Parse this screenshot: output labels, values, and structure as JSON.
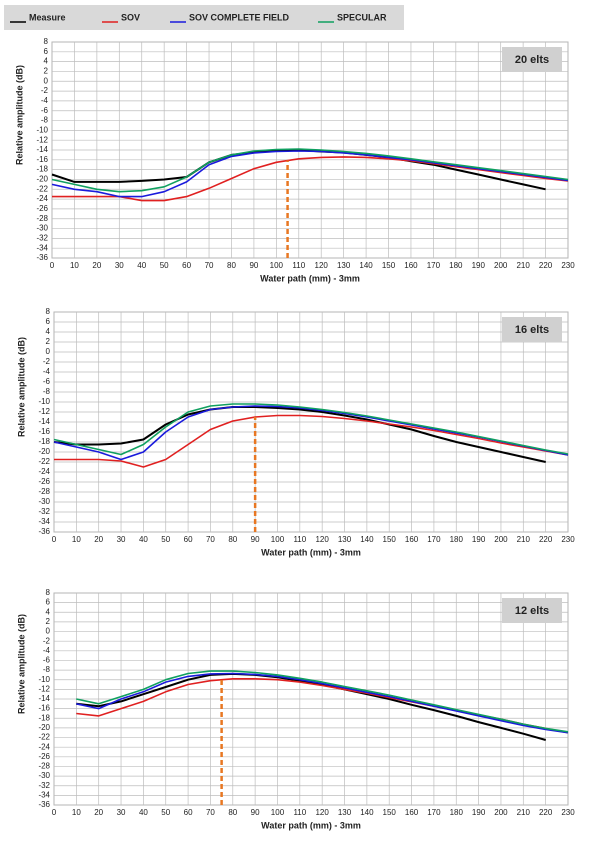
{
  "chart_data": [
    {
      "type": "line",
      "annotation": "20 elts",
      "xlabel": "Water path (mm) - 3mm",
      "ylabel": "Relative amplitude (dB)",
      "xlim": [
        0,
        230
      ],
      "xticks": [
        0,
        10,
        20,
        30,
        40,
        50,
        60,
        70,
        80,
        90,
        100,
        110,
        120,
        130,
        140,
        150,
        160,
        170,
        180,
        190,
        200,
        210,
        220,
        230
      ],
      "ylim": [
        -36,
        8
      ],
      "yticks": [
        8,
        6,
        4,
        2,
        0,
        -2,
        -4,
        -6,
        -8,
        -10,
        -12,
        -14,
        -16,
        -18,
        -20,
        -22,
        -24,
        -26,
        -28,
        -30,
        -32,
        -34,
        -36
      ],
      "grid": true,
      "marker_x": 105,
      "marker_color": "#e87722",
      "x": [
        0,
        10,
        20,
        30,
        40,
        50,
        60,
        70,
        80,
        90,
        100,
        110,
        120,
        130,
        140,
        150,
        160,
        170,
        180,
        190,
        200,
        210,
        220,
        230
      ],
      "series": [
        {
          "name": "Measure",
          "color": "#000000",
          "values": [
            -19,
            -20.5,
            -20.5,
            -20.5,
            -20.3,
            -20,
            -19.5,
            -16.5,
            -15,
            -14.5,
            -14,
            -14,
            -14.3,
            -14.5,
            -15,
            -15.5,
            -16.3,
            -17,
            -18,
            -19,
            -20,
            -21,
            -22,
            null
          ]
        },
        {
          "name": "SOV",
          "color": "#e02020",
          "values": [
            -23.5,
            -23.5,
            -23.5,
            -23.5,
            -24.3,
            -24.3,
            -23.5,
            -21.8,
            -19.8,
            -17.8,
            -16.5,
            -15.8,
            -15.5,
            -15.4,
            -15.5,
            -15.8,
            -16.2,
            -16.8,
            -17.4,
            -18,
            -18.6,
            -19.2,
            -19.8,
            -20.3
          ]
        },
        {
          "name": "SOV COMPLETE FIELD",
          "color": "#1a1adc",
          "values": [
            -21,
            -22,
            -22.5,
            -23.5,
            -23.5,
            -22.5,
            -20.5,
            -17,
            -15.3,
            -14.6,
            -14.3,
            -14.2,
            -14.3,
            -14.6,
            -15,
            -15.5,
            -16,
            -16.6,
            -17.2,
            -17.8,
            -18.4,
            -19,
            -19.6,
            -20.2
          ]
        },
        {
          "name": "SPECULAR",
          "color": "#10a060",
          "values": [
            -20,
            -21,
            -22,
            -22.5,
            -22.3,
            -21.5,
            -19.5,
            -16.5,
            -15,
            -14.2,
            -13.9,
            -13.8,
            -14,
            -14.3,
            -14.7,
            -15.2,
            -15.8,
            -16.4,
            -17,
            -17.6,
            -18.2,
            -18.8,
            -19.4,
            -20
          ]
        }
      ]
    },
    {
      "type": "line",
      "annotation": "16 elts",
      "xlabel": "Water path (mm) - 3mm",
      "ylabel": "Relative amplitude (dB)",
      "xlim": [
        0,
        230
      ],
      "xticks": [
        0,
        10,
        20,
        30,
        40,
        50,
        60,
        70,
        80,
        90,
        100,
        110,
        120,
        130,
        140,
        150,
        160,
        170,
        180,
        190,
        200,
        210,
        220,
        230
      ],
      "ylim": [
        -36,
        8
      ],
      "yticks": [
        8,
        6,
        4,
        2,
        0,
        -2,
        -4,
        -6,
        -8,
        -10,
        -12,
        -14,
        -16,
        -18,
        -20,
        -22,
        -24,
        -26,
        -28,
        -30,
        -32,
        -34,
        -36
      ],
      "grid": true,
      "marker_x": 90,
      "marker_color": "#e87722",
      "x": [
        0,
        10,
        20,
        30,
        40,
        50,
        60,
        70,
        80,
        90,
        100,
        110,
        120,
        130,
        140,
        150,
        160,
        170,
        180,
        190,
        200,
        210,
        220,
        230
      ],
      "series": [
        {
          "name": "Measure",
          "color": "#000000",
          "values": [
            -18,
            -18.5,
            -18.5,
            -18.3,
            -17.5,
            -14.5,
            -12.5,
            -11.5,
            -11,
            -11,
            -11.2,
            -11.5,
            -12,
            -12.7,
            -13.5,
            -14.5,
            -15.5,
            -16.8,
            -18,
            -19,
            -20,
            -21,
            -22,
            null
          ]
        },
        {
          "name": "SOV",
          "color": "#e02020",
          "values": [
            -21.5,
            -21.5,
            -21.5,
            -21.8,
            -23,
            -21.5,
            -18.5,
            -15.5,
            -13.8,
            -13,
            -12.7,
            -12.7,
            -12.9,
            -13.3,
            -13.8,
            -14.4,
            -15,
            -15.7,
            -16.5,
            -17.3,
            -18.2,
            -19,
            -19.8,
            -20.6
          ]
        },
        {
          "name": "SOV COMPLETE FIELD",
          "color": "#1a1adc",
          "values": [
            -18,
            -19,
            -20,
            -21.5,
            -20,
            -16,
            -13,
            -11.5,
            -11,
            -10.8,
            -10.9,
            -11.2,
            -11.7,
            -12.3,
            -13,
            -13.8,
            -14.6,
            -15.4,
            -16.2,
            -17,
            -17.9,
            -18.8,
            -19.7,
            -20.6
          ]
        },
        {
          "name": "SPECULAR",
          "color": "#10a060",
          "values": [
            -17.5,
            -18.5,
            -19.5,
            -20.5,
            -18.5,
            -15,
            -12,
            -10.8,
            -10.4,
            -10.4,
            -10.6,
            -11,
            -11.5,
            -12.1,
            -12.8,
            -13.6,
            -14.4,
            -15.2,
            -16,
            -16.9,
            -17.8,
            -18.7,
            -19.6,
            -20.4
          ]
        }
      ]
    },
    {
      "type": "line",
      "annotation": "12 elts",
      "xlabel": "Water path (mm) - 3mm",
      "ylabel": "Relative amplitude (dB)",
      "xlim": [
        0,
        230
      ],
      "xticks": [
        0,
        10,
        20,
        30,
        40,
        50,
        60,
        70,
        80,
        90,
        100,
        110,
        120,
        130,
        140,
        150,
        160,
        170,
        180,
        190,
        200,
        210,
        220,
        230
      ],
      "ylim": [
        -36,
        8
      ],
      "yticks": [
        8,
        6,
        4,
        2,
        0,
        -2,
        -4,
        -6,
        -8,
        -10,
        -12,
        -14,
        -16,
        -18,
        -20,
        -22,
        -24,
        -26,
        -28,
        -30,
        -32,
        -34,
        -36
      ],
      "grid": true,
      "marker_x": 75,
      "marker_color": "#e87722",
      "x": [
        0,
        10,
        20,
        30,
        40,
        50,
        60,
        70,
        80,
        90,
        100,
        110,
        120,
        130,
        140,
        150,
        160,
        170,
        180,
        190,
        200,
        210,
        220,
        230
      ],
      "series": [
        {
          "name": "Measure",
          "color": "#000000",
          "values": [
            null,
            -15,
            -15.5,
            -14.5,
            -13,
            -11.5,
            -10,
            -9,
            -8.8,
            -9,
            -9.5,
            -10.2,
            -11,
            -12,
            -13,
            -14,
            -15.2,
            -16.3,
            -17.5,
            -18.8,
            -20,
            -21.2,
            -22.5,
            null
          ]
        },
        {
          "name": "SOV",
          "color": "#e02020",
          "values": [
            null,
            -17,
            -17.5,
            -16,
            -14.5,
            -12.5,
            -11,
            -10.2,
            -9.8,
            -9.8,
            -10,
            -10.5,
            -11.2,
            -12,
            -12.8,
            -13.7,
            -14.6,
            -15.5,
            -16.4,
            -17.3,
            -18.2,
            -19.2,
            -20.1,
            -21
          ]
        },
        {
          "name": "SOV COMPLETE FIELD",
          "color": "#1a1adc",
          "values": [
            null,
            -15,
            -16,
            -14,
            -12.5,
            -10.5,
            -9.3,
            -8.8,
            -8.7,
            -8.9,
            -9.3,
            -10,
            -10.8,
            -11.7,
            -12.6,
            -13.5,
            -14.5,
            -15.5,
            -16.5,
            -17.5,
            -18.5,
            -19.5,
            -20.3,
            -21
          ]
        },
        {
          "name": "SPECULAR",
          "color": "#10a060",
          "values": [
            null,
            -14,
            -15,
            -13.5,
            -12,
            -10,
            -8.7,
            -8.2,
            -8.2,
            -8.5,
            -9,
            -9.7,
            -10.5,
            -11.4,
            -12.3,
            -13.2,
            -14.2,
            -15.2,
            -16.2,
            -17.2,
            -18.2,
            -19.2,
            -20.1,
            -20.8
          ]
        }
      ]
    }
  ]
}
